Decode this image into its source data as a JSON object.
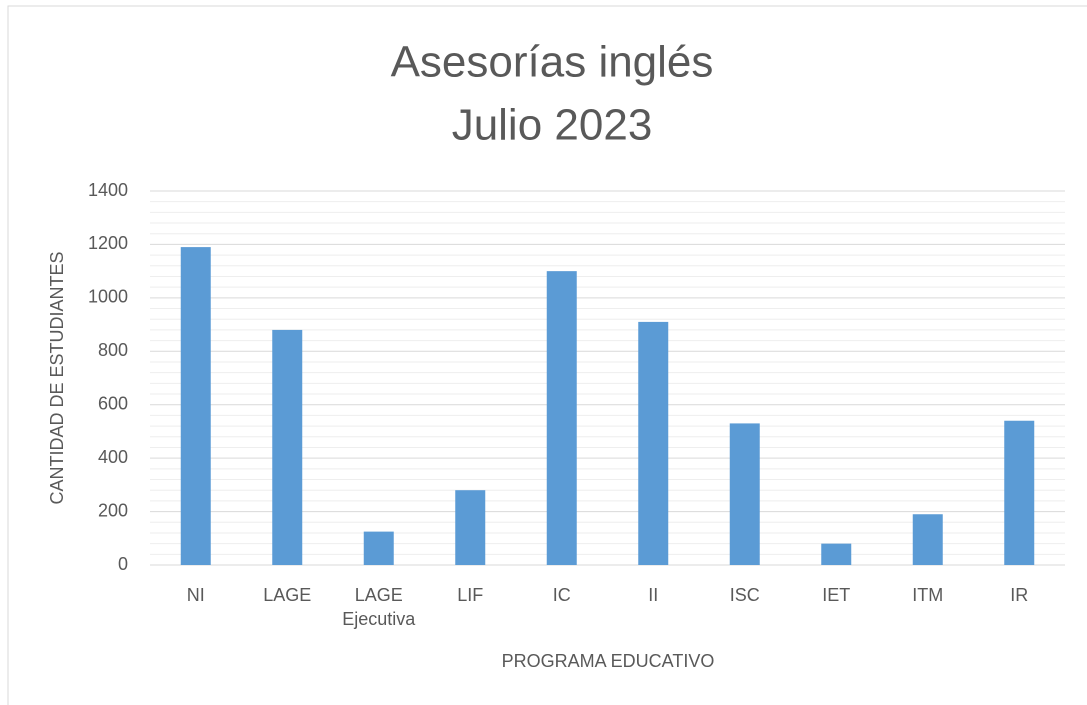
{
  "chart_data": {
    "type": "bar",
    "title": [
      "Asesorías inglés",
      "Julio 2023"
    ],
    "x_label": "PROGRAMA EDUCATIVO",
    "y_label": "CANTIDAD DE ESTUDIANTES",
    "categories": [
      "NI",
      "LAGE",
      "LAGE Ejecutiva",
      "LIF",
      "IC",
      "II",
      "ISC",
      "IET",
      "ITM",
      "IR"
    ],
    "values": [
      1190,
      880,
      125,
      280,
      1100,
      910,
      530,
      80,
      190,
      540
    ],
    "color": "#5b9bd5",
    "ylim": [
      0,
      1400
    ],
    "yticks": [
      0,
      200,
      400,
      600,
      800,
      1000,
      1200,
      1400
    ],
    "grid": true
  }
}
